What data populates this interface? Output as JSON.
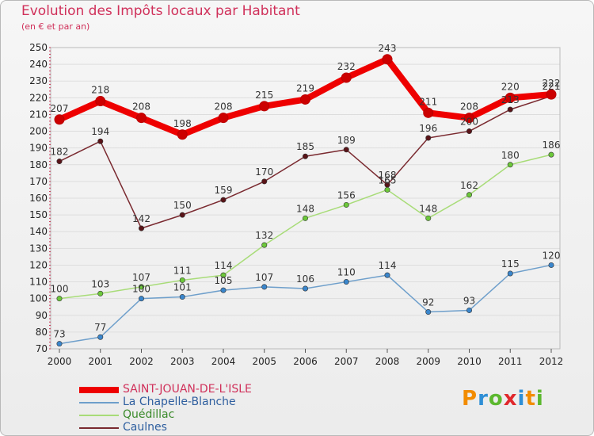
{
  "header": {
    "title": "Evolution des Impôts locaux par Habitant",
    "subtitle": "(en € et par an)"
  },
  "brand": {
    "name": "Proxiti",
    "letters": [
      "P",
      "r",
      "o",
      "x",
      "i",
      "t",
      "i"
    ],
    "letter_colors": [
      "#f28c00",
      "#2f8fd6",
      "#5cb82f",
      "#e0282c",
      "#2f8fd6",
      "#f28c00",
      "#5cb82f"
    ]
  },
  "colors": {
    "title": "#d0305a",
    "axis_text": "#222222",
    "grid": "#dddddd",
    "label": "#333333"
  },
  "chart_data": {
    "type": "line",
    "x": [
      2000,
      2001,
      2002,
      2003,
      2004,
      2005,
      2006,
      2007,
      2008,
      2009,
      2010,
      2011,
      2012
    ],
    "ylim": [
      70,
      250
    ],
    "yticks": [
      70,
      80,
      90,
      100,
      110,
      120,
      130,
      140,
      150,
      160,
      170,
      180,
      190,
      200,
      210,
      220,
      230,
      240,
      250
    ],
    "grid": true,
    "legend_position": "bottom-left",
    "series": [
      {
        "name": "SAINT-JOUAN-DE-L'ISLE",
        "values": [
          207,
          218,
          208,
          198,
          208,
          215,
          219,
          232,
          243,
          211,
          208,
          220,
          222
        ],
        "color": "#ee0000",
        "marker_color": "#cc0000",
        "emphasis": true
      },
      {
        "name": "La Chapelle-Blanche",
        "values": [
          73,
          77,
          100,
          101,
          105,
          107,
          106,
          110,
          114,
          92,
          93,
          115,
          120
        ],
        "color": "#6e9fcb",
        "marker_color": "#3a86cc",
        "emphasis": false
      },
      {
        "name": "Quédillac",
        "values": [
          100,
          103,
          107,
          111,
          114,
          132,
          148,
          156,
          165,
          148,
          162,
          180,
          186
        ],
        "color": "#a8dc78",
        "marker_color": "#6cc83a",
        "emphasis": false
      },
      {
        "name": "Caulnes",
        "values": [
          182,
          194,
          142,
          150,
          159,
          170,
          185,
          189,
          168,
          196,
          200,
          213,
          221
        ],
        "color": "#7a2a30",
        "marker_color": "#5a1418",
        "emphasis": false
      }
    ]
  }
}
